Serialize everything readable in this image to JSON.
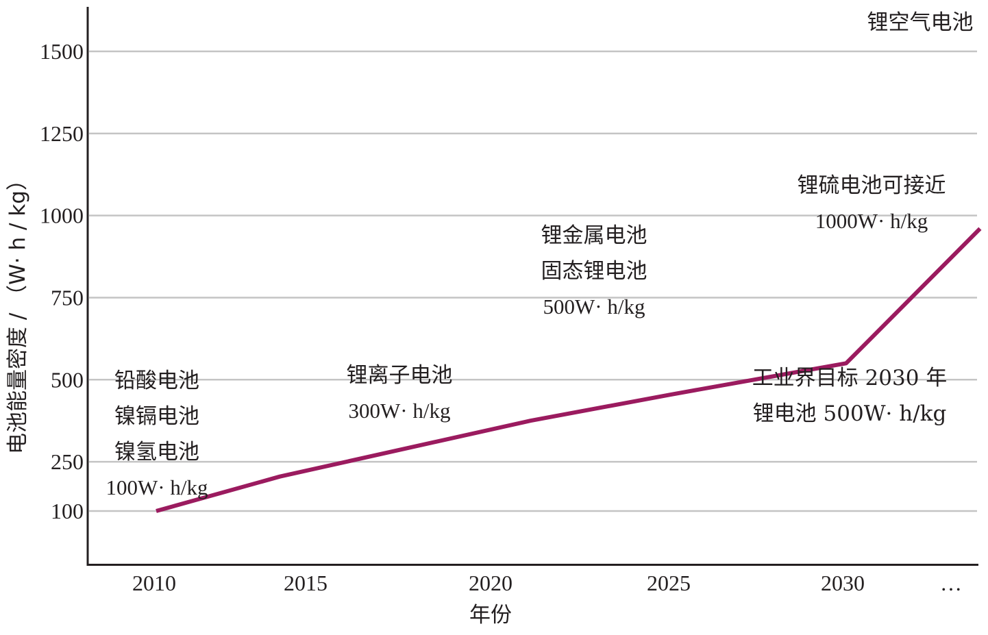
{
  "chart_data": {
    "type": "line",
    "xlabel": "年份",
    "ylabel": "电池能量密度 / （W· h / kg）",
    "x_ticks": [
      "2010",
      "2015",
      "2020",
      "2025",
      "2030",
      "…"
    ],
    "y_ticks": [
      "100",
      "250",
      "500",
      "750",
      "1000",
      "1250",
      "1500"
    ],
    "y_tick_values": [
      100,
      250,
      500,
      750,
      1000,
      1250,
      1500
    ],
    "ylim": [
      -70,
      1640
    ],
    "xlim": [
      2008.1,
      2033.2
    ],
    "grid": true,
    "series": [
      {
        "color": "#9b1b5f",
        "x": [
          2010,
          2013.6,
          2020.9,
          2025,
          2030.1,
          2034
        ],
        "y": [
          100,
          205,
          375,
          455,
          550,
          960
        ]
      }
    ],
    "annotations": [
      {
        "lines": [
          "锂空气电池"
        ]
      },
      {
        "lines": [
          "锂硫电池可接近",
          "1000W· h/kg"
        ]
      },
      {
        "lines": [
          "锂金属电池",
          "固态锂电池",
          "500W· h/kg"
        ]
      },
      {
        "lines": [
          "铅酸电池",
          "镍镉电池",
          "镍氢电池",
          "100W· h/kg"
        ]
      },
      {
        "lines": [
          "锂离子电池",
          "300W· h/kg"
        ]
      },
      {
        "lines": [
          "工业界目标 2030 年",
          "锂电池 500W· h/kg"
        ]
      }
    ]
  }
}
